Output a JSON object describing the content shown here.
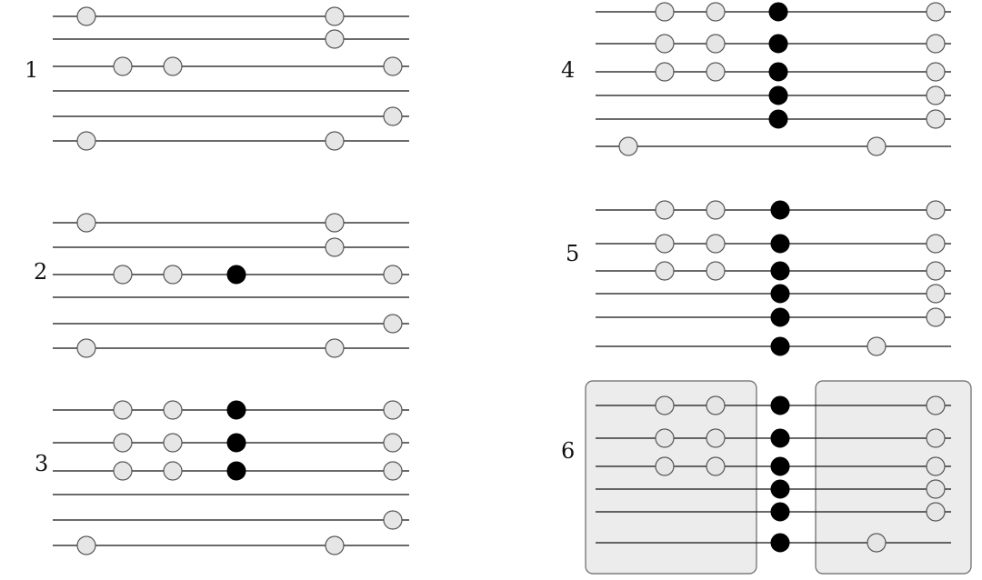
{
  "colors": {
    "open_fill": "#e6e6e6",
    "open_stroke": "#555555",
    "filled": "#000000",
    "wire": "#111111",
    "region_fill": "#ececec"
  },
  "panels": [
    {
      "label": "1",
      "filled": [],
      "open": [
        [
          0,
          0
        ],
        [
          0,
          5
        ],
        [
          1,
          5
        ],
        [
          2,
          1
        ],
        [
          2,
          2
        ],
        [
          2,
          6
        ],
        [
          4,
          6
        ],
        [
          5,
          0
        ],
        [
          5,
          5
        ]
      ]
    },
    {
      "label": "2",
      "filled": [
        [
          2,
          3
        ]
      ],
      "open": [
        [
          0,
          0
        ],
        [
          0,
          5
        ],
        [
          1,
          5
        ],
        [
          2,
          1
        ],
        [
          2,
          2
        ],
        [
          2,
          6
        ],
        [
          4,
          6
        ],
        [
          5,
          0
        ],
        [
          5,
          5
        ]
      ]
    },
    {
      "label": "3",
      "filled": [
        [
          0,
          3
        ],
        [
          1,
          3
        ],
        [
          2,
          3
        ]
      ],
      "open": [
        [
          0,
          1
        ],
        [
          0,
          2
        ],
        [
          0,
          6
        ],
        [
          1,
          1
        ],
        [
          1,
          2
        ],
        [
          1,
          6
        ],
        [
          2,
          1
        ],
        [
          2,
          2
        ],
        [
          2,
          6
        ],
        [
          4,
          6
        ],
        [
          5,
          0
        ],
        [
          5,
          5
        ]
      ]
    },
    {
      "label": "4",
      "filled": [
        [
          0,
          3
        ],
        [
          1,
          3
        ],
        [
          2,
          3
        ],
        [
          3,
          3
        ],
        [
          4,
          3
        ]
      ],
      "open": [
        [
          0,
          1
        ],
        [
          0,
          2
        ],
        [
          0,
          6
        ],
        [
          1,
          1
        ],
        [
          1,
          2
        ],
        [
          1,
          6
        ],
        [
          2,
          1
        ],
        [
          2,
          2
        ],
        [
          2,
          6
        ],
        [
          3,
          6
        ],
        [
          4,
          6
        ],
        [
          5,
          0
        ],
        [
          5,
          5
        ]
      ]
    },
    {
      "label": "5",
      "filled": [
        [
          0,
          3
        ],
        [
          1,
          3
        ],
        [
          2,
          3
        ],
        [
          3,
          3
        ],
        [
          4,
          3
        ],
        [
          5,
          3
        ]
      ],
      "open": [
        [
          0,
          1
        ],
        [
          0,
          2
        ],
        [
          0,
          6
        ],
        [
          1,
          1
        ],
        [
          1,
          2
        ],
        [
          1,
          6
        ],
        [
          2,
          1
        ],
        [
          2,
          2
        ],
        [
          2,
          6
        ],
        [
          3,
          6
        ],
        [
          4,
          6
        ],
        [
          5,
          5
        ]
      ]
    },
    {
      "label": "6",
      "filled": [
        [
          0,
          3
        ],
        [
          1,
          3
        ],
        [
          2,
          3
        ],
        [
          3,
          3
        ],
        [
          4,
          3
        ],
        [
          5,
          3
        ]
      ],
      "open": [
        [
          0,
          1
        ],
        [
          0,
          2
        ],
        [
          0,
          6
        ],
        [
          1,
          1
        ],
        [
          1,
          2
        ],
        [
          1,
          6
        ],
        [
          2,
          1
        ],
        [
          2,
          2
        ],
        [
          2,
          6
        ],
        [
          3,
          6
        ],
        [
          4,
          6
        ],
        [
          5,
          5
        ]
      ],
      "regions": [
        "left",
        "right"
      ]
    }
  ]
}
